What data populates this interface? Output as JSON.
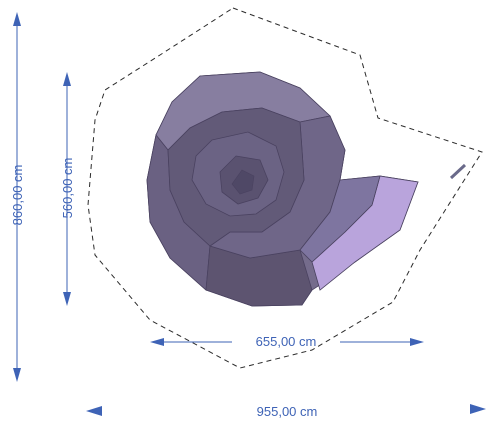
{
  "colors": {
    "dimension": "#3e63b6",
    "outline": "#2b2b2b",
    "shell_dark": "#5d5470",
    "shell_mid": "#756c8c",
    "shell_light": "#8a80a2",
    "shell_tip": "#b9a4dc",
    "background": "#ffffff"
  },
  "dimensions": {
    "outer_height": "860,00 cm",
    "inner_height": "560,00 cm",
    "inner_width": "655,00 cm",
    "outer_width": "955,00 cm"
  }
}
